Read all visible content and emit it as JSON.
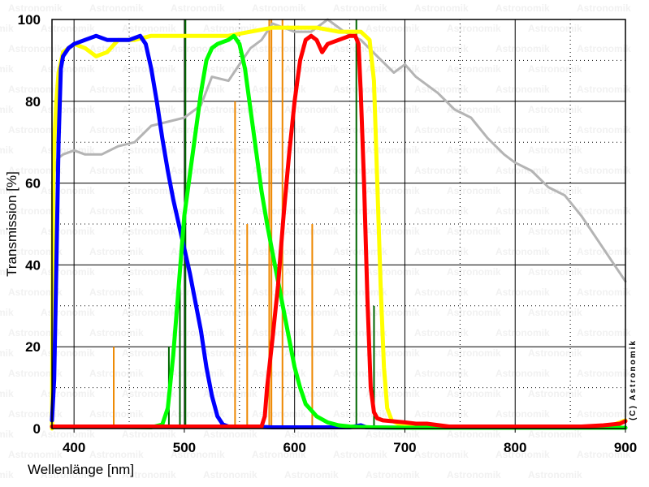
{
  "chart_data": {
    "type": "line",
    "xlabel": "Wellenlänge [nm]",
    "ylabel": "Transmission [%]",
    "xlim": [
      380,
      900
    ],
    "ylim": [
      0,
      100
    ],
    "xticks": [
      400,
      500,
      600,
      700,
      800,
      900
    ],
    "yticks": [
      0,
      20,
      40,
      60,
      80,
      100
    ],
    "grid": true,
    "credit": "(C) Astronomik",
    "watermark": "Astronomik",
    "series": [
      {
        "color": "#b4b4b4",
        "points": [
          [
            380,
            60
          ],
          [
            385,
            66
          ],
          [
            390,
            67
          ],
          [
            400,
            68
          ],
          [
            410,
            67
          ],
          [
            425,
            67
          ],
          [
            440,
            69
          ],
          [
            455,
            70
          ],
          [
            470,
            74
          ],
          [
            485,
            75
          ],
          [
            500,
            76
          ],
          [
            515,
            79
          ],
          [
            525,
            86
          ],
          [
            540,
            85
          ],
          [
            550,
            89
          ],
          [
            560,
            93
          ],
          [
            570,
            95
          ],
          [
            580,
            99
          ],
          [
            590,
            98
          ],
          [
            600,
            97
          ],
          [
            615,
            97
          ],
          [
            630,
            100
          ],
          [
            645,
            97
          ],
          [
            660,
            95
          ],
          [
            675,
            91
          ],
          [
            690,
            87
          ],
          [
            700,
            89
          ],
          [
            710,
            86
          ],
          [
            730,
            82
          ],
          [
            745,
            78
          ],
          [
            760,
            76
          ],
          [
            775,
            71
          ],
          [
            790,
            67
          ],
          [
            800,
            65
          ],
          [
            815,
            63
          ],
          [
            830,
            59
          ],
          [
            845,
            57
          ],
          [
            860,
            52
          ],
          [
            875,
            46
          ],
          [
            890,
            40
          ],
          [
            900,
            36
          ]
        ]
      },
      {
        "color": "#ffff00",
        "points": [
          [
            380,
            0
          ],
          [
            381,
            58
          ],
          [
            382,
            70
          ],
          [
            384,
            80
          ],
          [
            386,
            87
          ],
          [
            390,
            92
          ],
          [
            395,
            93
          ],
          [
            400,
            94
          ],
          [
            410,
            93
          ],
          [
            420,
            91
          ],
          [
            430,
            92
          ],
          [
            440,
            95
          ],
          [
            455,
            95
          ],
          [
            470,
            96
          ],
          [
            500,
            96
          ],
          [
            540,
            96
          ],
          [
            560,
            97
          ],
          [
            580,
            98
          ],
          [
            600,
            98
          ],
          [
            620,
            98
          ],
          [
            640,
            97
          ],
          [
            660,
            97
          ],
          [
            668,
            95
          ],
          [
            672,
            85
          ],
          [
            675,
            60
          ],
          [
            678,
            35
          ],
          [
            681,
            15
          ],
          [
            684,
            5
          ],
          [
            688,
            2
          ],
          [
            695,
            1
          ],
          [
            710,
            0.5
          ],
          [
            800,
            0.5
          ],
          [
            860,
            0.5
          ],
          [
            880,
            0.5
          ],
          [
            890,
            1
          ],
          [
            900,
            2
          ]
        ]
      },
      {
        "color": "#0000ff",
        "points": [
          [
            380,
            2
          ],
          [
            382,
            12
          ],
          [
            384,
            40
          ],
          [
            386,
            70
          ],
          [
            388,
            88
          ],
          [
            390,
            91
          ],
          [
            395,
            93
          ],
          [
            400,
            94
          ],
          [
            410,
            95
          ],
          [
            420,
            96
          ],
          [
            430,
            95
          ],
          [
            440,
            95
          ],
          [
            450,
            95
          ],
          [
            460,
            96
          ],
          [
            465,
            94
          ],
          [
            470,
            88
          ],
          [
            475,
            80
          ],
          [
            480,
            71
          ],
          [
            485,
            63
          ],
          [
            490,
            56
          ],
          [
            495,
            50
          ],
          [
            500,
            44
          ],
          [
            505,
            38
          ],
          [
            510,
            31
          ],
          [
            515,
            24
          ],
          [
            520,
            15
          ],
          [
            525,
            8
          ],
          [
            530,
            3
          ],
          [
            535,
            1
          ],
          [
            540,
            0.5
          ],
          [
            560,
            0.5
          ],
          [
            580,
            0.3
          ],
          [
            600,
            0.3
          ],
          [
            650,
            0.3
          ],
          [
            660,
            0.8
          ],
          [
            665,
            0.3
          ],
          [
            700,
            0.2
          ],
          [
            900,
            0.2
          ]
        ]
      },
      {
        "color": "#00ff00",
        "points": [
          [
            380,
            0.5
          ],
          [
            420,
            0.5
          ],
          [
            470,
            0.3
          ],
          [
            480,
            1
          ],
          [
            485,
            5
          ],
          [
            490,
            18
          ],
          [
            495,
            35
          ],
          [
            500,
            52
          ],
          [
            505,
            62
          ],
          [
            510,
            72
          ],
          [
            515,
            82
          ],
          [
            520,
            90
          ],
          [
            525,
            93
          ],
          [
            530,
            94
          ],
          [
            540,
            95
          ],
          [
            545,
            96
          ],
          [
            550,
            94
          ],
          [
            555,
            88
          ],
          [
            560,
            78
          ],
          [
            565,
            68
          ],
          [
            570,
            58
          ],
          [
            575,
            50
          ],
          [
            580,
            43
          ],
          [
            585,
            36
          ],
          [
            590,
            29
          ],
          [
            595,
            22
          ],
          [
            600,
            15
          ],
          [
            605,
            10
          ],
          [
            610,
            6
          ],
          [
            620,
            3
          ],
          [
            630,
            1.5
          ],
          [
            640,
            0.8
          ],
          [
            650,
            0.5
          ],
          [
            670,
            0.3
          ],
          [
            700,
            0.2
          ],
          [
            900,
            0.2
          ]
        ]
      },
      {
        "color": "#ff0000",
        "points": [
          [
            380,
            0.5
          ],
          [
            570,
            0.5
          ],
          [
            573,
            3
          ],
          [
            575,
            10
          ],
          [
            580,
            22
          ],
          [
            585,
            35
          ],
          [
            590,
            52
          ],
          [
            595,
            67
          ],
          [
            600,
            80
          ],
          [
            605,
            90
          ],
          [
            610,
            95
          ],
          [
            615,
            96
          ],
          [
            620,
            95
          ],
          [
            625,
            92
          ],
          [
            630,
            94
          ],
          [
            640,
            95
          ],
          [
            650,
            96
          ],
          [
            655,
            96
          ],
          [
            658,
            94
          ],
          [
            660,
            82
          ],
          [
            663,
            60
          ],
          [
            666,
            32
          ],
          [
            669,
            10
          ],
          [
            672,
            4
          ],
          [
            675,
            2.5
          ],
          [
            680,
            2
          ],
          [
            700,
            1.5
          ],
          [
            710,
            1.2
          ],
          [
            720,
            1.2
          ],
          [
            740,
            0.5
          ],
          [
            800,
            0.5
          ],
          [
            860,
            0.5
          ],
          [
            880,
            0.8
          ],
          [
            895,
            1.2
          ],
          [
            900,
            1.8
          ]
        ]
      }
    ],
    "emission_lines": [
      {
        "x": 436,
        "y": 20,
        "color": "#ee8800"
      },
      {
        "x": 486,
        "y": 20,
        "color": "#006600"
      },
      {
        "x": 496,
        "y": 40,
        "color": "#006600"
      },
      {
        "x": 501,
        "y": 100,
        "color": "#006600"
      },
      {
        "x": 546,
        "y": 80,
        "color": "#ee8800"
      },
      {
        "x": 557,
        "y": 50,
        "color": "#ee8800"
      },
      {
        "x": 577,
        "y": 100,
        "color": "#ee8800"
      },
      {
        "x": 579,
        "y": 100,
        "color": "#ee8800"
      },
      {
        "x": 589,
        "y": 100,
        "color": "#ee8800"
      },
      {
        "x": 616,
        "y": 50,
        "color": "#ee8800"
      },
      {
        "x": 656,
        "y": 100,
        "color": "#006600"
      },
      {
        "x": 672,
        "y": 30,
        "color": "#006600"
      }
    ]
  }
}
